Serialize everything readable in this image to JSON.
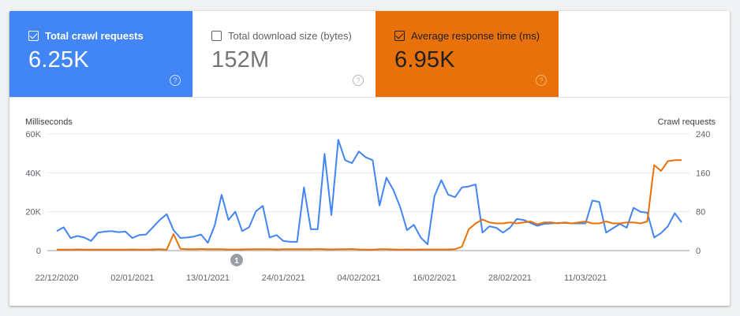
{
  "metrics": [
    {
      "label": "Total crawl requests",
      "value": "6.25K",
      "checked": true,
      "color": "#4285f4"
    },
    {
      "label": "Total download size (bytes)",
      "value": "152M",
      "checked": false,
      "color": "#ffffff"
    },
    {
      "label": "Average response time (ms)",
      "value": "6.95K",
      "checked": true,
      "color": "#e8710a"
    }
  ],
  "help_glyph": "?",
  "chart_data": {
    "type": "line",
    "y_left_label": "Milliseconds",
    "y_right_label": "Crawl requests",
    "y_left_ticks": [
      "0",
      "20K",
      "40K",
      "60K"
    ],
    "y_right_ticks": [
      "0",
      "80",
      "160",
      "240"
    ],
    "y_left_lim": [
      0,
      60000
    ],
    "y_right_lim": [
      0,
      240
    ],
    "x_ticks": [
      "22/12/2020",
      "02/01/2021",
      "13/01/2021",
      "24/01/2021",
      "04/02/2021",
      "16/02/2021",
      "28/02/2021",
      "11/03/2021"
    ],
    "annotation": "1",
    "grid": true,
    "series": [
      {
        "axis": "right",
        "color": "#4285f4",
        "values": [
          40,
          48,
          26,
          30,
          27,
          20,
          37,
          39,
          40,
          38,
          39,
          26,
          32,
          33,
          48,
          63,
          75,
          42,
          26,
          27,
          29,
          33,
          16,
          52,
          115,
          63,
          80,
          40,
          48,
          81,
          92,
          27,
          32,
          20,
          18,
          18,
          130,
          44,
          44,
          199,
          73,
          228,
          186,
          180,
          204,
          192,
          186,
          93,
          150,
          125,
          90,
          42,
          53,
          27,
          13,
          112,
          145,
          115,
          110,
          130,
          132,
          136,
          37,
          50,
          47,
          37,
          47,
          65,
          63,
          57,
          51,
          55,
          56,
          57,
          57,
          56,
          56,
          56,
          103,
          100,
          37,
          46,
          55,
          47,
          88,
          80,
          78,
          27,
          36,
          50,
          77,
          58
        ]
      },
      {
        "axis": "left",
        "color": "#e8710a",
        "values": [
          500,
          500,
          500,
          600,
          500,
          500,
          500,
          500,
          500,
          500,
          500,
          600,
          500,
          500,
          600,
          700,
          500,
          8500,
          900,
          700,
          700,
          800,
          700,
          700,
          700,
          600,
          600,
          600,
          700,
          700,
          700,
          700,
          600,
          700,
          700,
          700,
          700,
          700,
          800,
          700,
          600,
          700,
          700,
          800,
          600,
          500,
          500,
          700,
          700,
          600,
          500,
          600,
          500,
          600,
          600,
          600,
          600,
          600,
          700,
          2000,
          11000,
          14000,
          16000,
          14500,
          14000,
          14000,
          14500,
          14000,
          14500,
          15000,
          13500,
          14500,
          14500,
          14000,
          14500,
          14000,
          14500,
          15000,
          14000,
          14000,
          15000,
          14000,
          14000,
          14500,
          14500,
          14000,
          15000,
          44000,
          41000,
          46000,
          46500,
          46500
        ]
      }
    ]
  }
}
